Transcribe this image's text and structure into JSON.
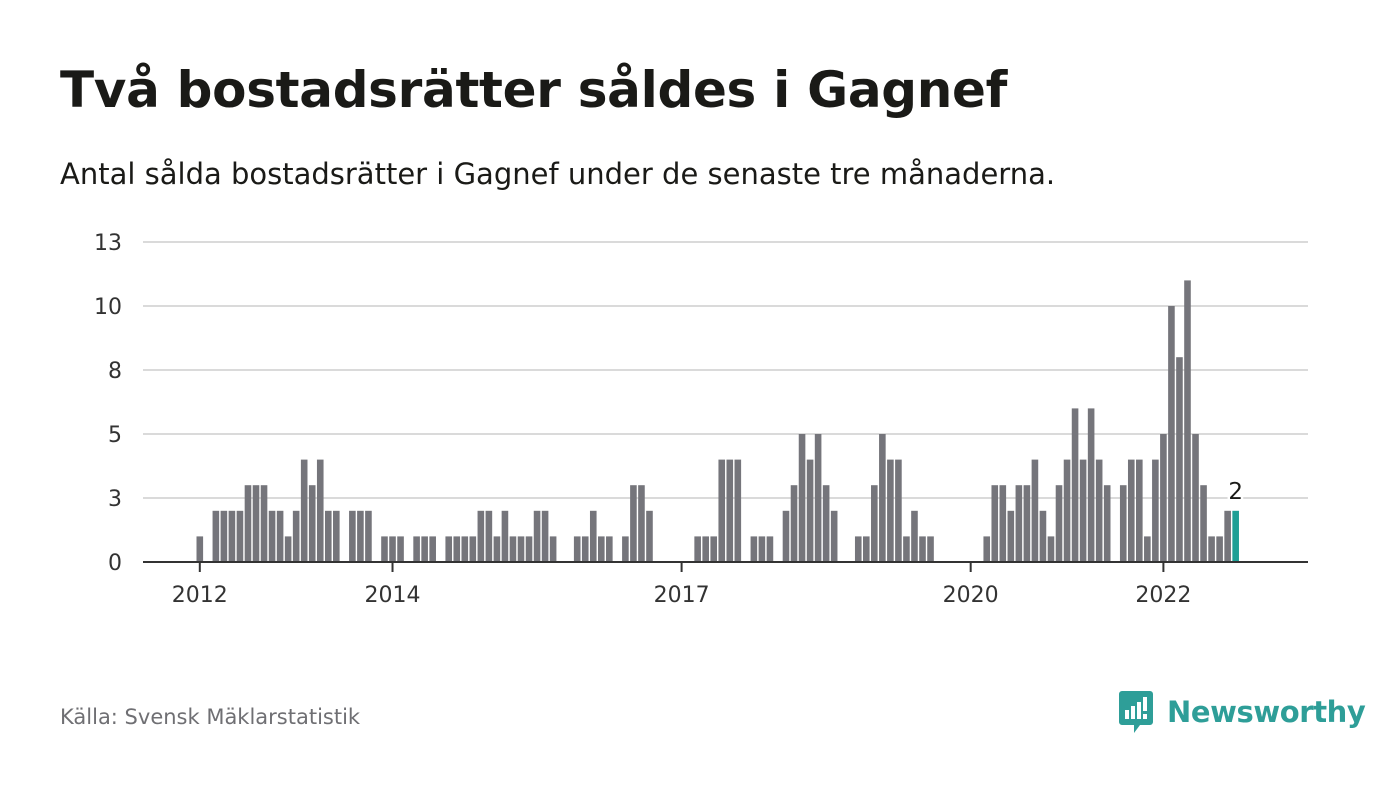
{
  "header": {
    "title": "Två bostadsrätter såldes i Gagnef",
    "subtitle": "Antal sålda bostadsrätter i Gagnef under de senaste tre månaderna."
  },
  "footer": {
    "source": "Källa: Svensk Mäklarstatistik",
    "brand": "Newsworthy"
  },
  "colors": {
    "bar": "#75757b",
    "highlight": "#1e9f95",
    "grid": "#dadada",
    "axis": "#333333",
    "brand": "#2e9e98"
  },
  "chart_data": {
    "type": "bar",
    "title": "Två bostadsrätter såldes i Gagnef",
    "subtitle": "Antal sålda bostadsrätter i Gagnef under de senaste tre månaderna.",
    "xlabel": "",
    "ylabel": "",
    "ylim": [
      0,
      12.5
    ],
    "yticks": [
      {
        "value": 0,
        "label": "0"
      },
      {
        "value": 2.5,
        "label": "3"
      },
      {
        "value": 5,
        "label": "5"
      },
      {
        "value": 7.5,
        "label": "8"
      },
      {
        "value": 10,
        "label": "10"
      },
      {
        "value": 12.5,
        "label": "13"
      }
    ],
    "xticks": [
      {
        "index": 0,
        "label": "2012"
      },
      {
        "index": 24,
        "label": "2014"
      },
      {
        "index": 60,
        "label": "2017"
      },
      {
        "index": 96,
        "label": "2020"
      },
      {
        "index": 120,
        "label": "2022"
      }
    ],
    "x_unit": "rolling three-month period ending each month, Jan 2012 – Oct 2022",
    "values": [
      1,
      0,
      2,
      2,
      2,
      2,
      3,
      3,
      3,
      2,
      2,
      1,
      2,
      4,
      3,
      4,
      2,
      2,
      0,
      2,
      2,
      2,
      0,
      1,
      1,
      1,
      0,
      1,
      1,
      1,
      0,
      1,
      1,
      1,
      1,
      2,
      2,
      1,
      2,
      1,
      1,
      1,
      2,
      2,
      1,
      0,
      0,
      1,
      1,
      2,
      1,
      1,
      0,
      1,
      3,
      3,
      2,
      0,
      0,
      0,
      0,
      0,
      1,
      1,
      1,
      4,
      4,
      4,
      0,
      1,
      1,
      1,
      0,
      2,
      3,
      5,
      4,
      5,
      3,
      2,
      0,
      0,
      1,
      1,
      3,
      5,
      4,
      4,
      1,
      2,
      1,
      1,
      0,
      0,
      0,
      0,
      0,
      0,
      1,
      3,
      3,
      2,
      3,
      3,
      4,
      2,
      1,
      3,
      4,
      6,
      4,
      6,
      4,
      3,
      0,
      3,
      4,
      4,
      1,
      4,
      5,
      10,
      8,
      11,
      5,
      3,
      1,
      1,
      2,
      2
    ],
    "highlight_index": 129,
    "highlight_label": "2",
    "grid": true,
    "legend": "none"
  }
}
